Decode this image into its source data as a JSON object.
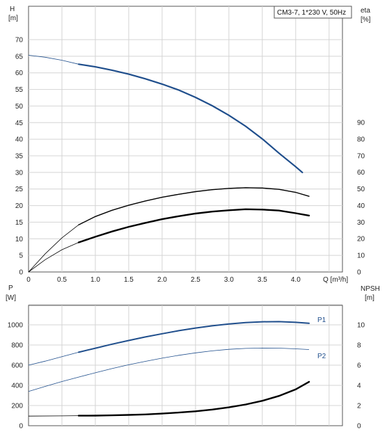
{
  "chart_data": [
    {
      "type": "line",
      "title": "CM3-7, 1*230 V, 50Hz",
      "xlabel": "Q [m³/h]",
      "ylabel_left": [
        "H",
        "[m]"
      ],
      "ylabel_right": [
        "eta",
        "[%]"
      ],
      "xlim": [
        0,
        4.7
      ],
      "ylim_left": [
        0,
        74
      ],
      "ylim_right": [
        0,
        100
      ],
      "xticks": [
        "0",
        "0.5",
        "1.0",
        "1.5",
        "2.0",
        "2.5",
        "3.0",
        "3.5",
        "4.0"
      ],
      "xtick_values": [
        0,
        0.5,
        1.0,
        1.5,
        2.0,
        2.5,
        3.0,
        3.5,
        4.0
      ],
      "yticks_left": [
        0,
        5,
        10,
        15,
        20,
        25,
        30,
        35,
        40,
        45,
        50,
        55,
        60,
        65,
        70
      ],
      "yticks_right": [
        0,
        10,
        20,
        30,
        40,
        50,
        60,
        70,
        80,
        90
      ],
      "grid": true,
      "series": [
        {
          "axis": "left",
          "color": "#1f4e8c",
          "width_thin": 0.8,
          "width_thick": 2.2,
          "thick_from": 0.75,
          "points": [
            [
              0,
              65.3
            ],
            [
              0.25,
              64.7
            ],
            [
              0.5,
              63.8
            ],
            [
              0.75,
              62.6
            ],
            [
              1.0,
              61.8
            ],
            [
              1.25,
              60.8
            ],
            [
              1.5,
              59.6
            ],
            [
              1.75,
              58.2
            ],
            [
              2.0,
              56.6
            ],
            [
              2.25,
              54.8
            ],
            [
              2.5,
              52.6
            ],
            [
              2.75,
              50.1
            ],
            [
              3.0,
              47.2
            ],
            [
              3.25,
              43.9
            ],
            [
              3.5,
              40.1
            ],
            [
              3.75,
              35.8
            ],
            [
              4.0,
              31.7
            ],
            [
              4.1,
              30.0
            ]
          ]
        },
        {
          "axis": "left",
          "color": "#000000",
          "width_thin": 0.8,
          "width_thick": 1.4,
          "thick_from": 0.75,
          "points": [
            [
              0,
              0
            ],
            [
              0.25,
              5.5
            ],
            [
              0.5,
              10.3
            ],
            [
              0.75,
              14.2
            ],
            [
              1.0,
              16.7
            ],
            [
              1.25,
              18.6
            ],
            [
              1.5,
              20.1
            ],
            [
              1.75,
              21.4
            ],
            [
              2.0,
              22.5
            ],
            [
              2.25,
              23.4
            ],
            [
              2.5,
              24.2
            ],
            [
              2.75,
              24.8
            ],
            [
              3.0,
              25.2
            ],
            [
              3.25,
              25.4
            ],
            [
              3.5,
              25.3
            ],
            [
              3.75,
              24.9
            ],
            [
              4.0,
              24.0
            ],
            [
              4.2,
              22.8
            ]
          ]
        },
        {
          "axis": "left",
          "color": "#000000",
          "width_thin": 0.8,
          "width_thick": 2.4,
          "thick_from": 0.75,
          "points": [
            [
              0,
              0
            ],
            [
              0.25,
              3.7
            ],
            [
              0.5,
              6.7
            ],
            [
              0.75,
              8.9
            ],
            [
              1.0,
              10.6
            ],
            [
              1.25,
              12.2
            ],
            [
              1.5,
              13.6
            ],
            [
              1.75,
              14.8
            ],
            [
              2.0,
              15.9
            ],
            [
              2.25,
              16.8
            ],
            [
              2.5,
              17.6
            ],
            [
              2.75,
              18.2
            ],
            [
              3.0,
              18.6
            ],
            [
              3.25,
              18.9
            ],
            [
              3.5,
              18.8
            ],
            [
              3.75,
              18.5
            ],
            [
              4.0,
              17.7
            ],
            [
              4.2,
              17.0
            ]
          ]
        }
      ]
    },
    {
      "type": "line",
      "xlim": [
        0,
        4.7
      ],
      "ylabel_left": [
        "P",
        "[W]"
      ],
      "ylabel_right": [
        "NPSH",
        "[m]"
      ],
      "ylim_left": [
        0,
        1200
      ],
      "ylim_right": [
        0,
        12
      ],
      "yticks_left": [
        0,
        200,
        400,
        600,
        800,
        1000
      ],
      "yticks_right": [
        0,
        2,
        4,
        6,
        8,
        10
      ],
      "grid": true,
      "series": [
        {
          "name": "P1",
          "axis": "left",
          "color": "#1f4e8c",
          "width_thin": 0.8,
          "width_thick": 2.0,
          "thick_from": 0.75,
          "points": [
            [
              0,
              600
            ],
            [
              0.25,
              640
            ],
            [
              0.5,
              685
            ],
            [
              0.75,
              728
            ],
            [
              1.0,
              768
            ],
            [
              1.25,
              808
            ],
            [
              1.5,
              845
            ],
            [
              1.75,
              880
            ],
            [
              2.0,
              912
            ],
            [
              2.25,
              942
            ],
            [
              2.5,
              968
            ],
            [
              2.75,
              990
            ],
            [
              3.0,
              1008
            ],
            [
              3.25,
              1022
            ],
            [
              3.5,
              1030
            ],
            [
              3.75,
              1032
            ],
            [
              4.0,
              1025
            ],
            [
              4.2,
              1015
            ]
          ]
        },
        {
          "name": "P2",
          "axis": "left",
          "color": "#1f4e8c",
          "width_thin": 0.8,
          "width_thick": 0.9,
          "thick_from": 10,
          "points": [
            [
              0,
              340
            ],
            [
              0.25,
              390
            ],
            [
              0.5,
              438
            ],
            [
              0.75,
              482
            ],
            [
              1.0,
              525
            ],
            [
              1.25,
              566
            ],
            [
              1.5,
              604
            ],
            [
              1.75,
              638
            ],
            [
              2.0,
              670
            ],
            [
              2.25,
              698
            ],
            [
              2.5,
              722
            ],
            [
              2.75,
              742
            ],
            [
              3.0,
              757
            ],
            [
              3.25,
              766
            ],
            [
              3.5,
              770
            ],
            [
              3.75,
              769
            ],
            [
              4.0,
              762
            ],
            [
              4.2,
              755
            ]
          ]
        },
        {
          "axis": "right",
          "color": "#000000",
          "width_thin": 0.8,
          "width_thick": 2.4,
          "thick_from": 0.75,
          "points": [
            [
              0,
              0.95
            ],
            [
              0.5,
              0.97
            ],
            [
              0.75,
              0.99
            ],
            [
              1.0,
              1.0
            ],
            [
              1.25,
              1.03
            ],
            [
              1.5,
              1.07
            ],
            [
              1.75,
              1.12
            ],
            [
              2.0,
              1.2
            ],
            [
              2.25,
              1.3
            ],
            [
              2.5,
              1.43
            ],
            [
              2.75,
              1.6
            ],
            [
              3.0,
              1.82
            ],
            [
              3.25,
              2.1
            ],
            [
              3.5,
              2.47
            ],
            [
              3.75,
              2.95
            ],
            [
              4.0,
              3.6
            ],
            [
              4.2,
              4.35
            ]
          ]
        }
      ]
    }
  ]
}
